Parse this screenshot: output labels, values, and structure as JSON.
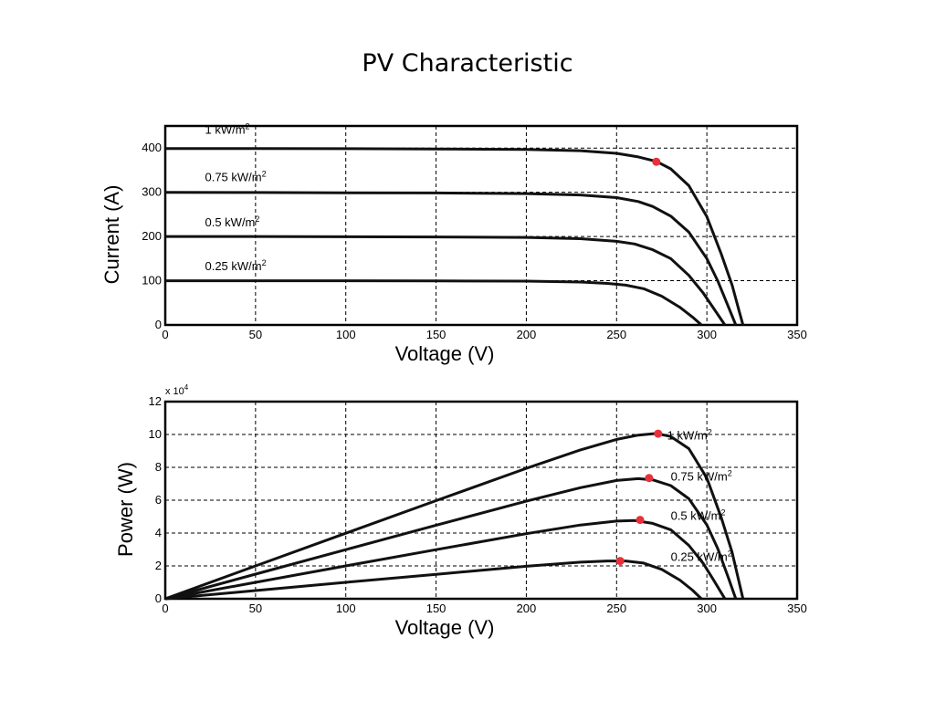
{
  "slide": {
    "title": "PV Characteristic"
  },
  "colors": {
    "curve": "#111111",
    "mpp_marker": "#e8303a",
    "grid": "#000000",
    "frame": "#000000"
  },
  "chart_data": [
    {
      "id": "iv",
      "type": "line",
      "xlabel": "Voltage (V)",
      "ylabel": "Current (A)",
      "xlim": [
        0,
        350
      ],
      "ylim": [
        0,
        450
      ],
      "xticks": [
        0,
        50,
        100,
        150,
        200,
        250,
        300,
        350
      ],
      "yticks": [
        0,
        100,
        200,
        300,
        400
      ],
      "grid": true,
      "series": [
        {
          "name": "1 kW/m2",
          "label_text": "1 kW/m",
          "label_sup": "2",
          "label_pos": [
            22,
            432
          ],
          "x": [
            0,
            50,
            100,
            150,
            200,
            230,
            250,
            262,
            272,
            280,
            290,
            300,
            308,
            314,
            318,
            320
          ],
          "y": [
            399,
            399,
            398.5,
            398,
            397,
            394,
            388,
            380,
            370,
            353,
            315,
            245,
            160,
            90,
            30,
            0
          ],
          "mpp": [
            272,
            369
          ]
        },
        {
          "name": "0.75 kW/m2",
          "label_text": "0.75 kW/m",
          "label_sup": "2",
          "label_pos": [
            22,
            325
          ],
          "x": [
            0,
            50,
            100,
            150,
            200,
            230,
            250,
            262,
            270,
            280,
            290,
            300,
            306,
            312,
            316
          ],
          "y": [
            300,
            299.5,
            299,
            298.5,
            297,
            294,
            288,
            279,
            268,
            246,
            210,
            150,
            100,
            40,
            0
          ]
        },
        {
          "name": "0.5 kW/m2",
          "label_text": "0.5 kW/m",
          "label_sup": "2",
          "label_pos": [
            22,
            223
          ],
          "x": [
            0,
            50,
            100,
            150,
            200,
            230,
            250,
            260,
            270,
            280,
            290,
            298,
            304,
            310
          ],
          "y": [
            200,
            200,
            199.5,
            199,
            198,
            195,
            189,
            183,
            170,
            150,
            112,
            72,
            36,
            0
          ]
        },
        {
          "name": "0.25 kW/m2",
          "label_text": "0.25 kW/m",
          "label_sup": "2",
          "label_pos": [
            22,
            124
          ],
          "x": [
            0,
            50,
            100,
            150,
            200,
            230,
            245,
            255,
            265,
            275,
            285,
            292,
            297
          ],
          "y": [
            100,
            100,
            100,
            99.5,
            99,
            97,
            94,
            90,
            82,
            65,
            40,
            18,
            0
          ]
        }
      ]
    },
    {
      "id": "pv",
      "type": "line",
      "xlabel": "Voltage (V)",
      "ylabel": "Power (W)",
      "y_multiplier_base": "x 10",
      "y_multiplier_exp": "4",
      "xlim": [
        0,
        350
      ],
      "ylim": [
        0,
        12
      ],
      "xticks": [
        0,
        50,
        100,
        150,
        200,
        250,
        300,
        350
      ],
      "yticks": [
        0,
        2,
        4,
        6,
        8,
        10,
        12
      ],
      "grid": true,
      "series": [
        {
          "name": "1 kW/m2",
          "label_text": "1 kW/m",
          "label_sup": "2",
          "label_pos": [
            278,
            9.7
          ],
          "x": [
            0,
            50,
            100,
            150,
            200,
            230,
            250,
            262,
            272,
            280,
            290,
            300,
            308,
            314,
            318,
            320
          ],
          "y": [
            0,
            2.0,
            3.99,
            5.97,
            7.94,
            9.06,
            9.7,
            9.96,
            10.06,
            9.88,
            9.14,
            7.35,
            4.93,
            2.83,
            0.95,
            0
          ],
          "mpp": [
            273,
            10.05
          ]
        },
        {
          "name": "0.75 kW/m2",
          "label_text": "0.75 kW/m",
          "label_sup": "2",
          "label_pos": [
            280,
            7.2
          ],
          "x": [
            0,
            50,
            100,
            150,
            200,
            230,
            250,
            262,
            270,
            280,
            290,
            300,
            306,
            312,
            316
          ],
          "y": [
            0,
            1.5,
            2.99,
            4.48,
            5.94,
            6.76,
            7.2,
            7.31,
            7.24,
            6.89,
            6.09,
            4.5,
            3.06,
            1.25,
            0
          ],
          "mpp": [
            268,
            7.35
          ]
        },
        {
          "name": "0.5 kW/m2",
          "label_text": "0.5 kW/m",
          "label_sup": "2",
          "label_pos": [
            280,
            4.8
          ],
          "x": [
            0,
            50,
            100,
            150,
            200,
            230,
            250,
            260,
            270,
            280,
            290,
            298,
            304,
            310
          ],
          "y": [
            0,
            1.0,
            2.0,
            2.99,
            3.96,
            4.49,
            4.73,
            4.76,
            4.59,
            4.2,
            3.25,
            2.15,
            1.09,
            0
          ],
          "mpp": [
            263,
            4.8
          ]
        },
        {
          "name": "0.25 kW/m2",
          "label_text": "0.25 kW/m",
          "label_sup": "2",
          "label_pos": [
            280,
            2.3
          ],
          "x": [
            0,
            50,
            100,
            150,
            200,
            230,
            245,
            255,
            265,
            275,
            285,
            292,
            297
          ],
          "y": [
            0,
            0.5,
            1.0,
            1.49,
            1.98,
            2.23,
            2.3,
            2.3,
            2.17,
            1.79,
            1.14,
            0.53,
            0
          ],
          "mpp": [
            252,
            2.3
          ]
        }
      ]
    }
  ]
}
